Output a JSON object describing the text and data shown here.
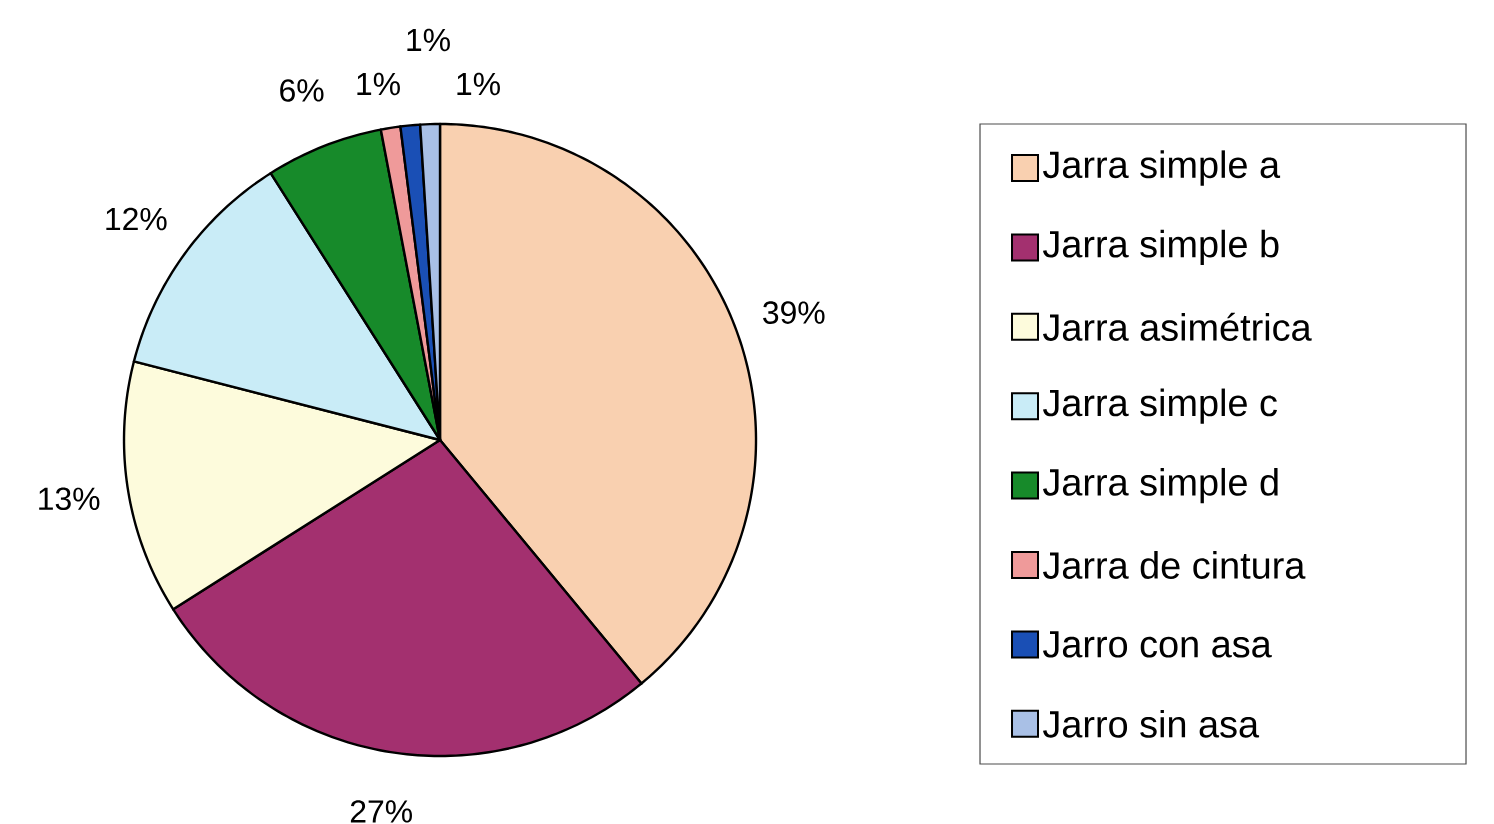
{
  "chart_data": {
    "type": "pie",
    "categories": [
      "Jarra simple a",
      "Jarra simple b",
      "Jarra asimétrica",
      "Jarra simple c",
      "Jarra simple d",
      "Jarra de cintura",
      "Jarro con asa",
      "Jarro sin asa"
    ],
    "values": [
      39,
      27,
      13,
      12,
      6,
      1,
      1,
      1
    ],
    "colors": [
      "#f9d0b0",
      "#a3306f",
      "#fdfbdc",
      "#c9ecf7",
      "#178a2a",
      "#ef9a9a",
      "#1a4fb5",
      "#a9c0e6"
    ],
    "value_labels": [
      "39%",
      "27%",
      "13%",
      "12%",
      "6%",
      "1%",
      "1%",
      "1%"
    ],
    "legend": "right"
  }
}
